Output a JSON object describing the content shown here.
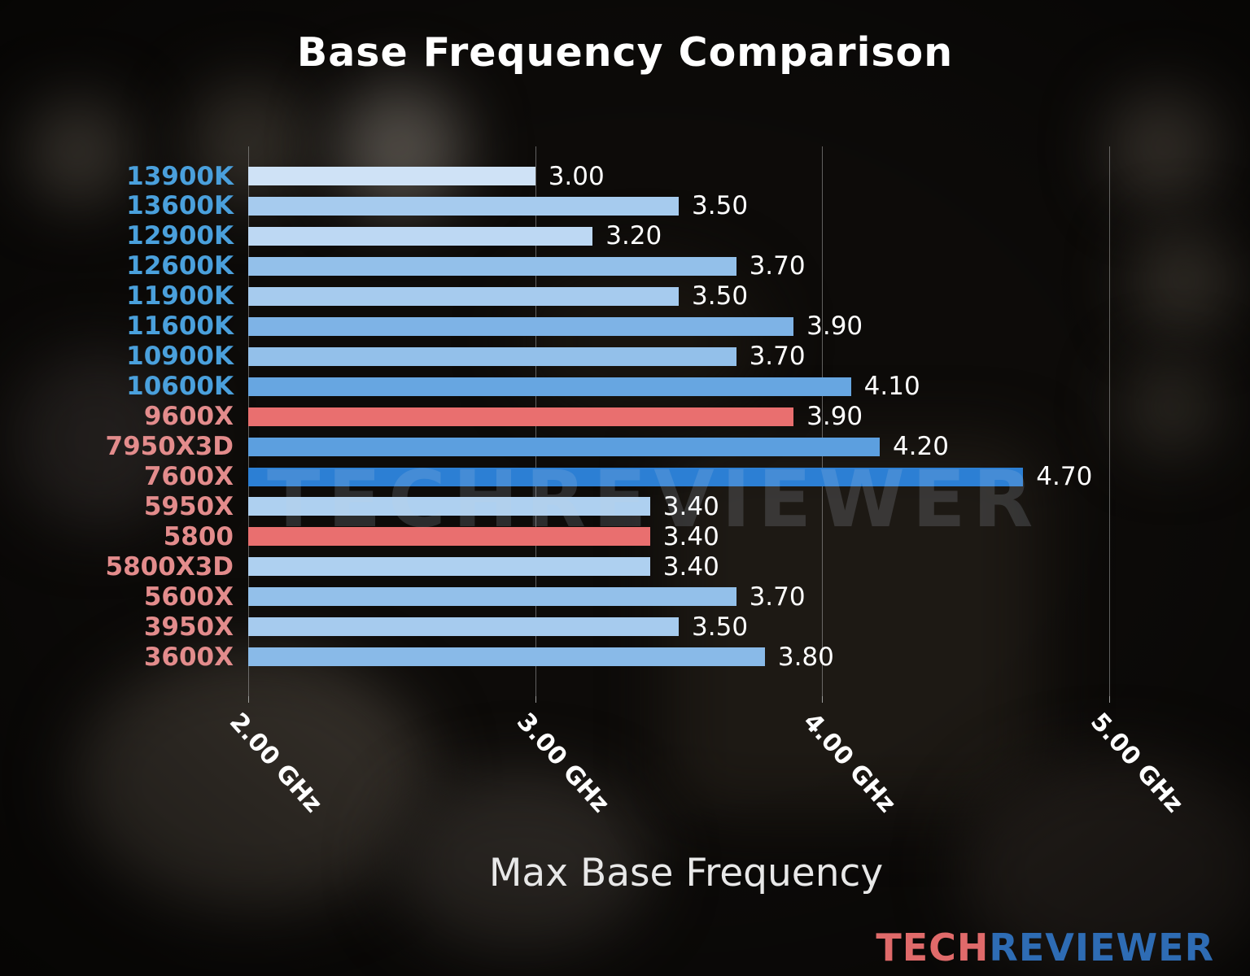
{
  "title": "Base Frequency Comparison",
  "watermark": "TECHREVIEWER",
  "logo": {
    "part1": "TECH",
    "part2": "REVIEWER"
  },
  "colors": {
    "intel_label": "#4aa0dc",
    "amd_label": "#e38c8c",
    "highlight_bar": "#e96f6f",
    "strong_blue_bar": "#2c7fd4",
    "gridline": "#a8a8a8",
    "value_text": "#ffffff"
  },
  "chart_data": {
    "type": "bar",
    "orientation": "horizontal",
    "title": "Base Frequency Comparison",
    "xlabel": "Max Base Frequency",
    "ylabel": "",
    "xlim": [
      2.0,
      5.0
    ],
    "grid": true,
    "x_ticks": [
      "2.00 GHz",
      "3.00 GHz",
      "4.00 GHz",
      "5.00 GHz"
    ],
    "x_tick_values": [
      2.0,
      3.0,
      4.0,
      5.0
    ],
    "categories": [
      "13900K",
      "13600K",
      "12900K",
      "12600K",
      "11900K",
      "11600K",
      "10900K",
      "10600K",
      "9600X",
      "7950X3D",
      "7600X",
      "5950X",
      "5800",
      "5800X3D",
      "5600X",
      "3950X",
      "3600X"
    ],
    "values": [
      3.0,
      3.5,
      3.2,
      3.7,
      3.5,
      3.9,
      3.7,
      4.1,
      3.9,
      4.2,
      4.7,
      3.4,
      3.4,
      3.4,
      3.7,
      3.5,
      3.8
    ],
    "rows": [
      {
        "label": "13900K",
        "value": 3.0,
        "display": "3.00",
        "bar_color": "#cfe2f6",
        "label_color": "#4aa0dc"
      },
      {
        "label": "13600K",
        "value": 3.5,
        "display": "3.50",
        "bar_color": "#a6cbee",
        "label_color": "#4aa0dc"
      },
      {
        "label": "12900K",
        "value": 3.2,
        "display": "3.20",
        "bar_color": "#bdd8f3",
        "label_color": "#4aa0dc"
      },
      {
        "label": "12600K",
        "value": 3.7,
        "display": "3.70",
        "bar_color": "#93c0ea",
        "label_color": "#4aa0dc"
      },
      {
        "label": "11900K",
        "value": 3.5,
        "display": "3.50",
        "bar_color": "#a6cbee",
        "label_color": "#4aa0dc"
      },
      {
        "label": "11600K",
        "value": 3.9,
        "display": "3.90",
        "bar_color": "#7eb3e6",
        "label_color": "#4aa0dc"
      },
      {
        "label": "10900K",
        "value": 3.7,
        "display": "3.70",
        "bar_color": "#93c0ea",
        "label_color": "#4aa0dc"
      },
      {
        "label": "10600K",
        "value": 4.1,
        "display": "4.10",
        "bar_color": "#67a6e1",
        "label_color": "#4aa0dc"
      },
      {
        "label": "9600X",
        "value": 3.9,
        "display": "3.90",
        "bar_color": "#e96f6f",
        "label_color": "#e38c8c"
      },
      {
        "label": "7950X3D",
        "value": 4.2,
        "display": "4.20",
        "bar_color": "#5c9fdf",
        "label_color": "#e38c8c"
      },
      {
        "label": "7600X",
        "value": 4.7,
        "display": "4.70",
        "bar_color": "#2c7fd4",
        "label_color": "#e38c8c"
      },
      {
        "label": "5950X",
        "value": 3.4,
        "display": "3.40",
        "bar_color": "#aed0f0",
        "label_color": "#e38c8c"
      },
      {
        "label": "5800",
        "value": 3.4,
        "display": "3.40",
        "bar_color": "#e96f6f",
        "label_color": "#e38c8c"
      },
      {
        "label": "5800X3D",
        "value": 3.4,
        "display": "3.40",
        "bar_color": "#aed0f0",
        "label_color": "#e38c8c"
      },
      {
        "label": "5600X",
        "value": 3.7,
        "display": "3.70",
        "bar_color": "#93c0ea",
        "label_color": "#e38c8c"
      },
      {
        "label": "3950X",
        "value": 3.5,
        "display": "3.50",
        "bar_color": "#a6cbee",
        "label_color": "#e38c8c"
      },
      {
        "label": "3600X",
        "value": 3.8,
        "display": "3.80",
        "bar_color": "#89bae8",
        "label_color": "#e38c8c"
      }
    ]
  }
}
